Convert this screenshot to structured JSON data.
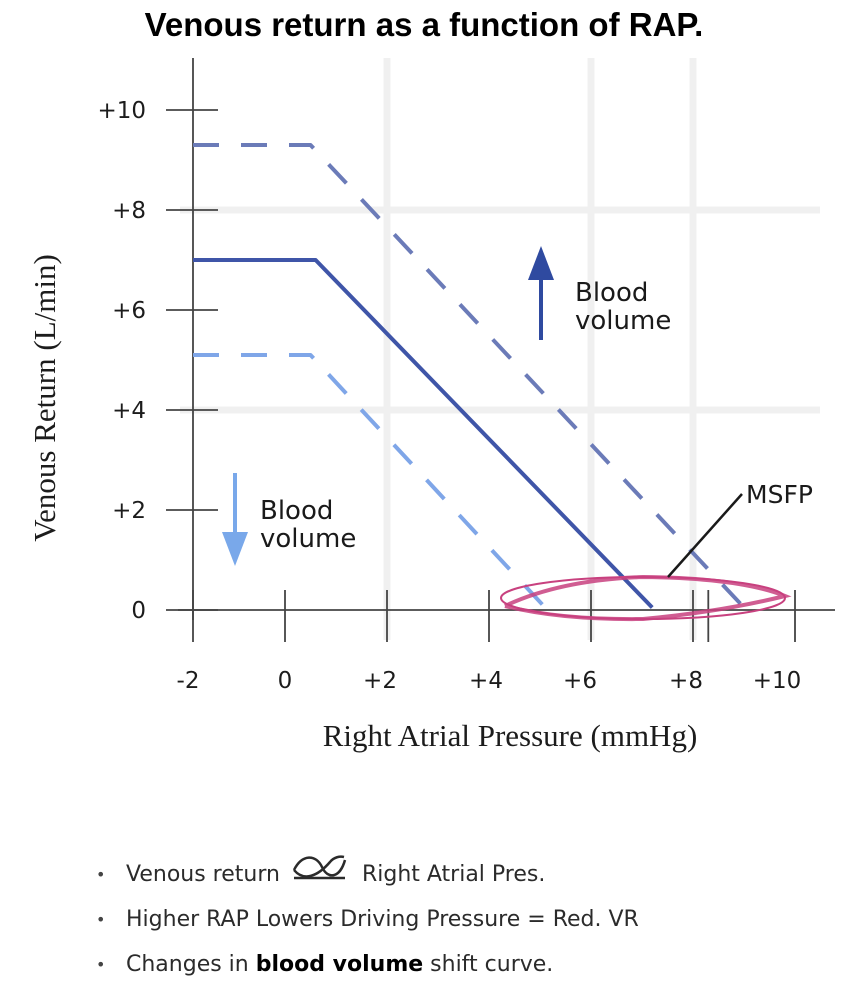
{
  "chart_data": {
    "type": "line",
    "title": "Venous return as a function of RAP.",
    "xlabel": "Right Atrial Pressure (mmHg)",
    "ylabel": "Venous Return (L/min)",
    "x_ticks": [
      "-2",
      "0",
      "+2",
      "+4",
      "+6",
      "+8",
      "+10"
    ],
    "y_ticks": [
      "0",
      "+2",
      "+4",
      "+6",
      "+8",
      "+10"
    ],
    "xlim": [
      -2,
      10
    ],
    "ylim": [
      0,
      10
    ],
    "series": [
      {
        "style": "dashed",
        "color": "#6b7bb8",
        "points": [
          [
            -2,
            9.3
          ],
          [
            0.5,
            9.3
          ],
          [
            9.0,
            0.05
          ]
        ]
      },
      {
        "style": "solid",
        "color": "#3f55a8",
        "points": [
          [
            -2,
            7.0
          ],
          [
            0.6,
            7.0
          ],
          [
            7.2,
            0.05
          ]
        ]
      },
      {
        "style": "dashed",
        "color": "#7fa6e8",
        "points": [
          [
            -2,
            5.1
          ],
          [
            0.5,
            5.1
          ],
          [
            5.1,
            0.05
          ]
        ]
      }
    ],
    "annotations": {
      "up_label": "Blood volume",
      "down_label": "Blood volume",
      "msfp_label": "MSFP",
      "up_arrow_color": "#2f4aa0",
      "down_arrow_color": "#79a8ea",
      "ellipse_color": "#c8417f"
    }
  },
  "bullets": [
    {
      "before": "Venous return",
      "icon": "proportional-icon",
      "after": "Right Atrial Pres."
    },
    {
      "text": "Higher RAP Lowers Driving Pressure = Red. VR"
    },
    {
      "before": "Changes in ",
      "bold": "blood volume",
      "after": " shift curve."
    }
  ]
}
